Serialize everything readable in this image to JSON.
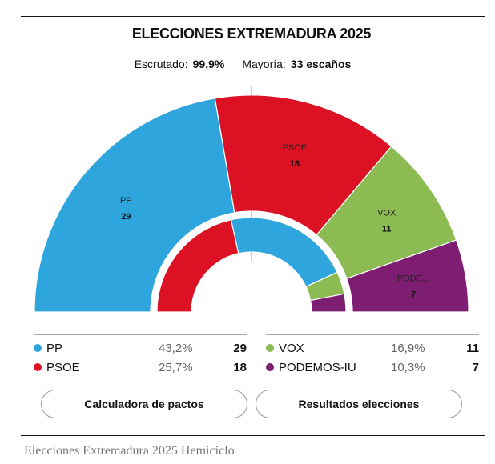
{
  "title": "ELECCIONES EXTREMADURA 2025",
  "meta": {
    "scrutinized_label": "Escrutado:",
    "scrutinized_value": "99,9%",
    "majority_label": "Mayoría:",
    "majority_value": "33 escaños"
  },
  "chart_data": {
    "type": "pie",
    "subtype": "hemicycle",
    "total_seats": 65,
    "majority": 33,
    "outer_ring": [
      {
        "name": "PP",
        "arc_label": "PP",
        "seats": 29,
        "pct": "43,2%",
        "color": "#2fa5dd"
      },
      {
        "name": "PSOE",
        "arc_label": "PSOE",
        "seats": 18,
        "pct": "25,7%",
        "color": "#dc1224"
      },
      {
        "name": "VOX",
        "arc_label": "VOX",
        "seats": 11,
        "pct": "16,9%",
        "color": "#8bbb52"
      },
      {
        "name": "PODEMOS-IU",
        "arc_label": "PODE...",
        "seats": 7,
        "pct": "10,3%",
        "color": "#7e1e72"
      }
    ],
    "inner_ring": [
      {
        "seats": 28,
        "color": "#dc1224"
      },
      {
        "seats": 28,
        "color": "#2fa5dd"
      },
      {
        "seats": 5,
        "color": "#8bbb52"
      },
      {
        "seats": 4,
        "color": "#7e1e72"
      }
    ]
  },
  "buttons": {
    "pacts": "Calculadora de pactos",
    "results": "Resultados elecciones"
  },
  "caption": "Elecciones Extremadura 2025 Hemiciclo"
}
